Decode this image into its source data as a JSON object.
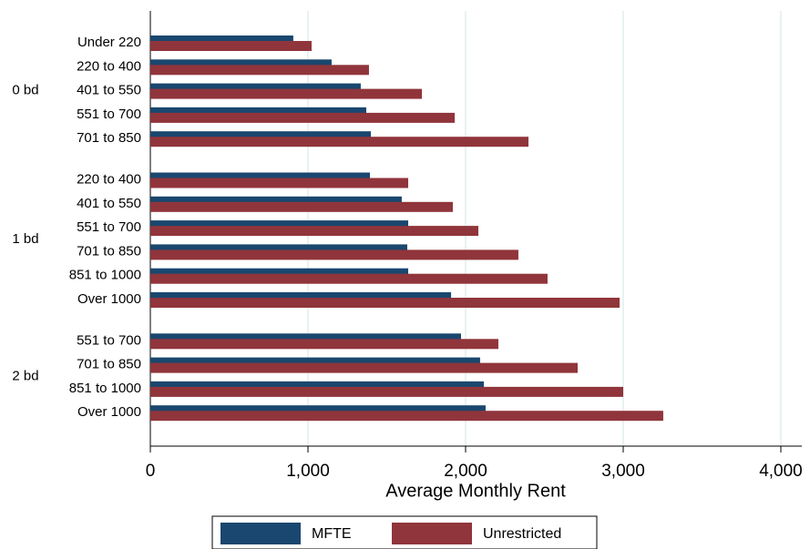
{
  "chart_data": {
    "type": "hbar-grouped",
    "xlabel": "Average Monthly Rent",
    "groups": [
      {
        "name": "0 bd",
        "categories": [
          "Under 220",
          "220 to 400",
          "401 to 550",
          "551 to 700",
          "701 to 850"
        ]
      },
      {
        "name": "1 bd",
        "categories": [
          "220 to 400",
          "401 to 550",
          "551 to 700",
          "701 to 850",
          "851 to 1000",
          "Over 1000"
        ]
      },
      {
        "name": "2 bd",
        "categories": [
          "551 to 700",
          "701 to 850",
          "851 to 1000",
          "Over 1000"
        ]
      }
    ],
    "series": [
      {
        "name": "MFTE",
        "color": "#1a476f",
        "values": [
          [
            907,
            1150,
            1335,
            1370,
            1399
          ],
          [
            1393,
            1595,
            1636,
            1630,
            1636,
            1908
          ],
          [
            1971,
            2092,
            2116,
            2127
          ]
        ]
      },
      {
        "name": "Unrestricted",
        "color": "#90353b",
        "values": [
          [
            1023,
            1387,
            1723,
            1931,
            2399
          ],
          [
            1636,
            1919,
            2081,
            2335,
            2520,
            2977
          ],
          [
            2208,
            2711,
            3000,
            3254
          ]
        ]
      }
    ],
    "xlim": [
      0,
      4133
    ],
    "xticks": [
      0,
      {
        "value": 1000,
        "label": "1,000"
      },
      {
        "value": 2000,
        "label": "2,000"
      },
      {
        "value": 3000,
        "label": "3,000"
      },
      {
        "value": 4000,
        "label": "4,000"
      }
    ],
    "grid": true,
    "legend": "bottom"
  }
}
